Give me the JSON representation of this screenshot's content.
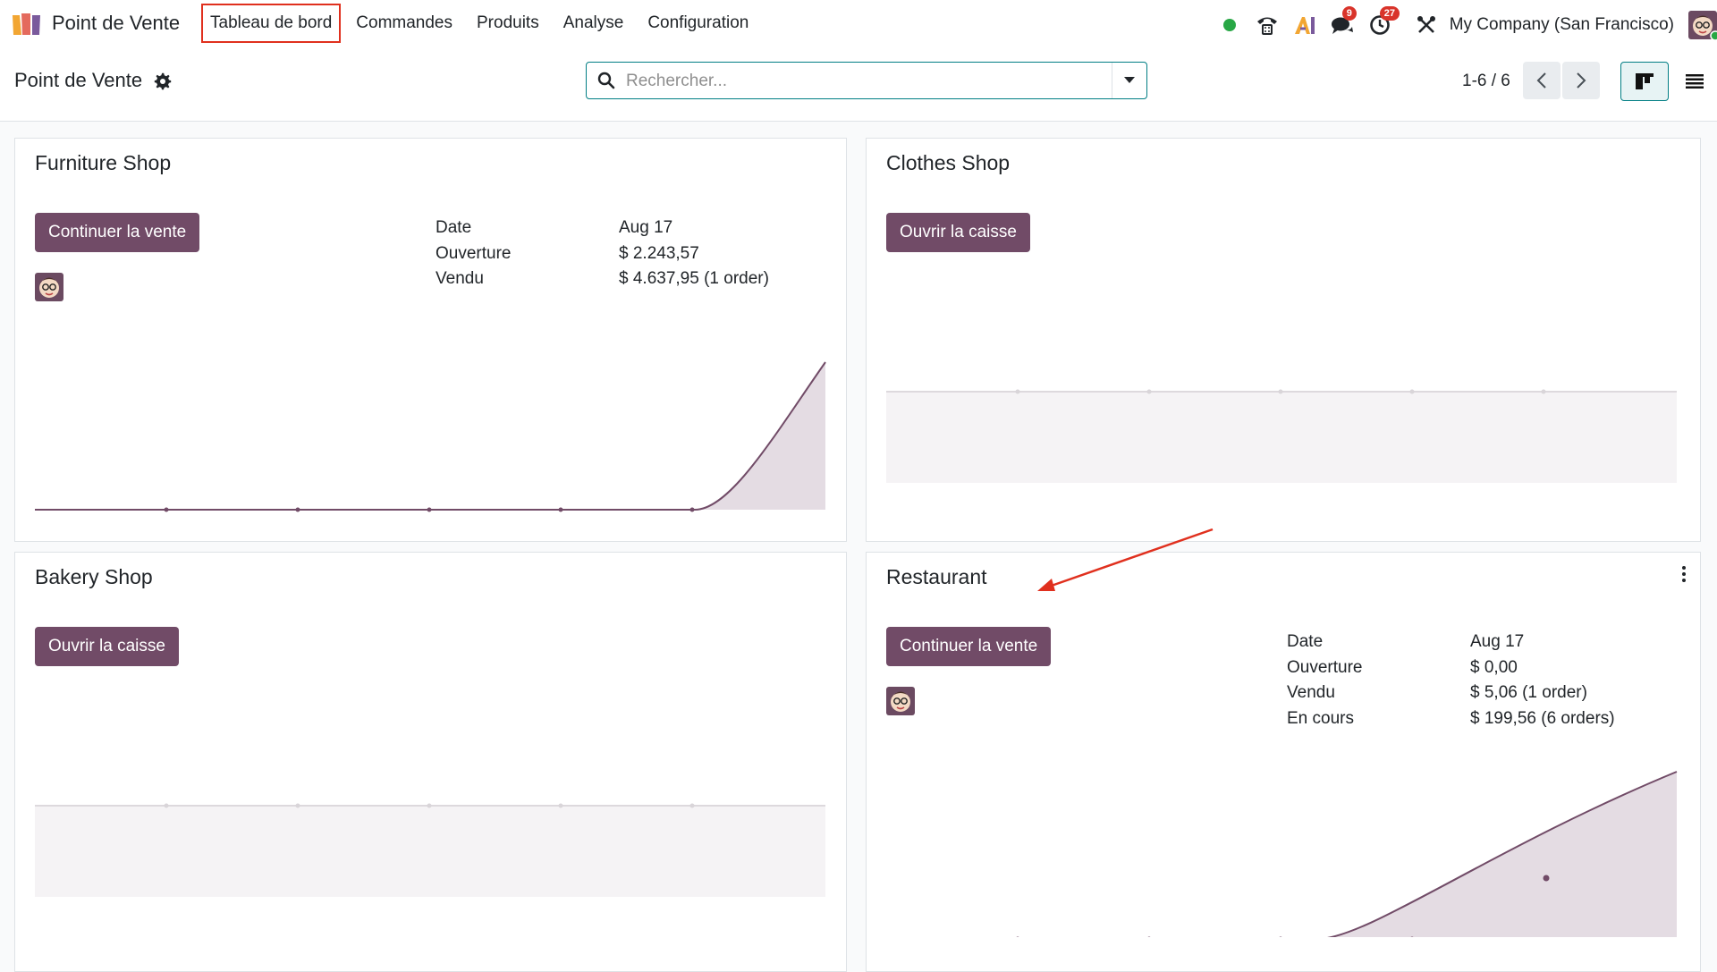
{
  "navbar": {
    "brand": "Point de Vente",
    "menu": [
      "Tableau de bord",
      "Commandes",
      "Produits",
      "Analyse",
      "Configuration"
    ],
    "messages_count": "9",
    "activities_count": "27",
    "company": "My Company (San Francisco)"
  },
  "control_panel": {
    "title": "Point de Vente",
    "search_placeholder": "Rechercher...",
    "pager": "1-6 / 6"
  },
  "colors": {
    "primary": "#714b67",
    "accent": "#017e84",
    "online": "#28a745",
    "badge": "#d9342b",
    "annotation": "#e0301e"
  },
  "cards": [
    {
      "title": "Furniture Shop",
      "button": "Continuer la vente",
      "has_user": true,
      "stats": [
        {
          "label": "Date",
          "value": "Aug 17"
        },
        {
          "label": "Ouverture",
          "value": "$ 2.243,57"
        },
        {
          "label": "Vendu",
          "value": "$ 4.637,95 (1 order)"
        }
      ]
    },
    {
      "title": "Clothes Shop",
      "button": "Ouvrir la caisse",
      "has_user": false,
      "stats": []
    },
    {
      "title": "Bakery Shop",
      "button": "Ouvrir la caisse",
      "has_user": false,
      "stats": []
    },
    {
      "title": "Restaurant",
      "button": "Continuer la vente",
      "has_user": true,
      "stats": [
        {
          "label": "Date",
          "value": "Aug 17"
        },
        {
          "label": "Ouverture",
          "value": "$ 0,00"
        },
        {
          "label": "Vendu",
          "value": "$ 5,06 (1 order)"
        },
        {
          "label": "En cours",
          "value": "$ 199,56 (6 orders)"
        }
      ]
    }
  ]
}
